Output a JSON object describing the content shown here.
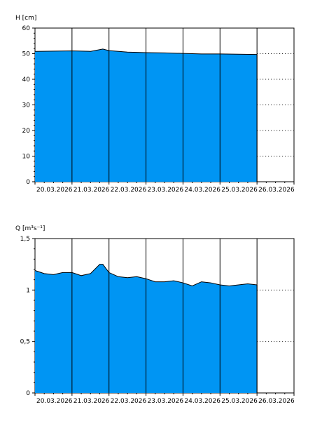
{
  "colors": {
    "fill": "#0095f3",
    "line": "#000000",
    "background": "#ffffff",
    "grid": "#000000"
  },
  "chart_data": [
    {
      "type": "area",
      "title": "",
      "ylabel": "H [cm]",
      "xlabel": "",
      "ylim": [
        0,
        60
      ],
      "yticks": [
        0,
        10,
        20,
        30,
        40,
        50,
        60
      ],
      "ytick_labels": [
        "0",
        "10",
        "20",
        "30",
        "40",
        "50",
        "60"
      ],
      "xlim": [
        "2026-03-20",
        "2026-03-27"
      ],
      "xticks": [
        "2026-03-20",
        "2026-03-21",
        "2026-03-22",
        "2026-03-23",
        "2026-03-24",
        "2026-03-25",
        "2026-03-26"
      ],
      "xtick_labels": [
        "20.03.2026",
        "21.03.2026",
        "22.03.2026",
        "23.03.2026",
        "24.03.2026",
        "25.03.2026",
        "26.03.2026"
      ],
      "grid": "vertical solid lines at each day, dotted horizontal lines at each labeled y-tick",
      "series": [
        {
          "x": [
            "2026-03-20 00:00",
            "2026-03-20 12:00",
            "2026-03-21 00:00",
            "2026-03-21 12:00",
            "2026-03-21 20:00",
            "2026-03-22 00:00",
            "2026-03-22 12:00",
            "2026-03-23 00:00",
            "2026-03-23 12:00",
            "2026-03-24 00:00",
            "2026-03-24 12:00",
            "2026-03-25 00:00",
            "2026-03-25 12:00",
            "2026-03-26 00:00"
          ],
          "values": [
            50.9,
            51.0,
            51.1,
            50.9,
            51.8,
            51.2,
            50.6,
            50.4,
            50.3,
            50.1,
            49.9,
            49.9,
            49.8,
            49.7
          ]
        }
      ]
    },
    {
      "type": "area",
      "title": "",
      "ylabel": "Q [m³s⁻¹]",
      "xlabel": "",
      "ylim": [
        0,
        1.5
      ],
      "yticks": [
        0,
        0.5,
        1,
        1.5
      ],
      "ytick_labels": [
        "0",
        "0,5",
        "1",
        "1,5"
      ],
      "xlim": [
        "2026-03-20",
        "2026-03-27"
      ],
      "xticks": [
        "2026-03-20",
        "2026-03-21",
        "2026-03-22",
        "2026-03-23",
        "2026-03-24",
        "2026-03-25",
        "2026-03-26"
      ],
      "xtick_labels": [
        "20.03.2026",
        "21.03.2026",
        "22.03.2026",
        "23.03.2026",
        "24.03.2026",
        "25.03.2026",
        "26.03.2026"
      ],
      "grid": "vertical solid lines at each day, dotted horizontal lines at each labeled y-tick",
      "series": [
        {
          "x": [
            "2026-03-20 00:00",
            "2026-03-20 06:00",
            "2026-03-20 12:00",
            "2026-03-20 18:00",
            "2026-03-21 00:00",
            "2026-03-21 06:00",
            "2026-03-21 12:00",
            "2026-03-21 18:00",
            "2026-03-21 20:00",
            "2026-03-22 00:00",
            "2026-03-22 06:00",
            "2026-03-22 12:00",
            "2026-03-22 18:00",
            "2026-03-23 00:00",
            "2026-03-23 06:00",
            "2026-03-23 12:00",
            "2026-03-23 18:00",
            "2026-03-24 00:00",
            "2026-03-24 06:00",
            "2026-03-24 12:00",
            "2026-03-24 18:00",
            "2026-03-25 00:00",
            "2026-03-25 06:00",
            "2026-03-25 12:00",
            "2026-03-25 18:00",
            "2026-03-26 00:00"
          ],
          "values": [
            1.19,
            1.16,
            1.15,
            1.17,
            1.17,
            1.14,
            1.16,
            1.25,
            1.25,
            1.17,
            1.13,
            1.12,
            1.13,
            1.11,
            1.08,
            1.08,
            1.09,
            1.07,
            1.04,
            1.08,
            1.07,
            1.05,
            1.04,
            1.05,
            1.06,
            1.05
          ]
        }
      ]
    }
  ]
}
